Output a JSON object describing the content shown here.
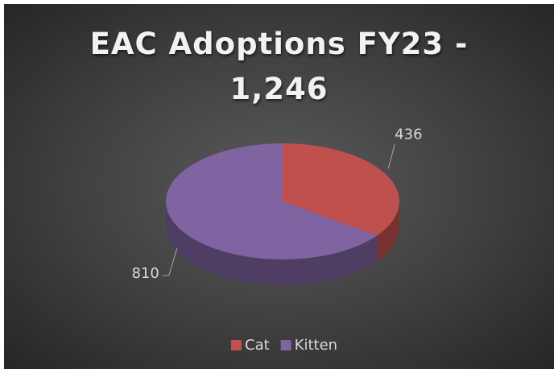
{
  "chart_data": {
    "type": "pie",
    "title": "EAC Adoptions FY23 - 1,246",
    "categories": [
      "Cat",
      "Kitten"
    ],
    "values": [
      436,
      810
    ],
    "colors": [
      "#c0504d",
      "#8064a2"
    ],
    "legend": "bottom",
    "three_d": true
  }
}
